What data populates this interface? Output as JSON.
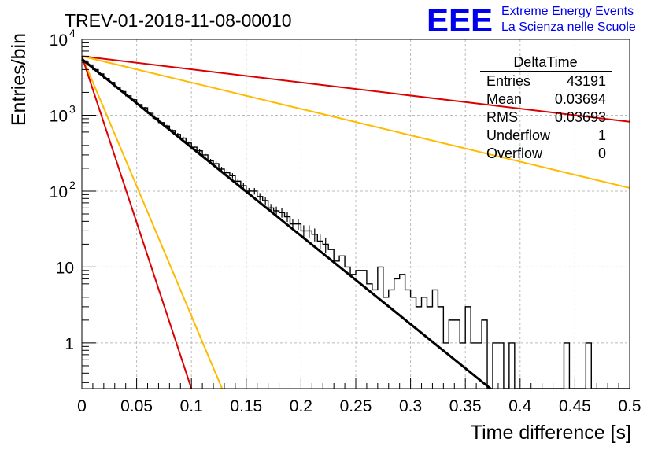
{
  "colors": {
    "hist": "#000000",
    "fit": "#000000",
    "red": "#dd0000",
    "orange": "#ffbb00",
    "logo": "#0000ee",
    "grid": "#bbbbbb"
  },
  "chart_data": {
    "type": "histogram",
    "title": "TREV-01-2018-11-08-00010",
    "xlabel": "Time difference [s]",
    "ylabel": "Entries/bin",
    "xlim": [
      0,
      0.5
    ],
    "ylim": [
      0.25,
      10000
    ],
    "yscale": "log",
    "grid": true,
    "x_ticks": [
      "0",
      "0.05",
      "0.1",
      "0.15",
      "0.2",
      "0.25",
      "0.3",
      "0.35",
      "0.4",
      "0.45",
      "0.5"
    ],
    "y_ticks": [
      {
        "value": 10000,
        "base": "10",
        "exp": "4"
      },
      {
        "value": 1000,
        "base": "10",
        "exp": "3"
      },
      {
        "value": 100,
        "base": "10",
        "exp": "2"
      },
      {
        "value": 10,
        "base": "10",
        "exp": ""
      },
      {
        "value": 1,
        "base": "1",
        "exp": ""
      }
    ],
    "bin_width": 0.005,
    "bin_values": [
      5200,
      4600,
      4000,
      3500,
      3050,
      2700,
      2350,
      2050,
      1800,
      1600,
      1380,
      1250,
      1060,
      910,
      800,
      720,
      630,
      560,
      500,
      430,
      380,
      340,
      300,
      250,
      230,
      195,
      175,
      160,
      135,
      118,
      100,
      100,
      85,
      75,
      60,
      55,
      52,
      46,
      37,
      37,
      30,
      30,
      27,
      22,
      20,
      17,
      12,
      14,
      10,
      8,
      9,
      9,
      6,
      5,
      10,
      4,
      5,
      7,
      8,
      5,
      4,
      3,
      4,
      3,
      5,
      3,
      1,
      2,
      2,
      1,
      3,
      1,
      1,
      2,
      0,
      1,
      1,
      0,
      1,
      0,
      0,
      0,
      0,
      0,
      0,
      0,
      0,
      0,
      1,
      0,
      0,
      0,
      1,
      0,
      0,
      0,
      0,
      0,
      0,
      0
    ],
    "fit_line": {
      "x": [
        0,
        0.373
      ],
      "y": [
        5500,
        0.25
      ]
    },
    "reference_lines": [
      {
        "color": "red",
        "x": [
          0,
          0.5
        ],
        "y": [
          6000,
          820
        ]
      },
      {
        "color": "orange",
        "x": [
          0,
          0.5
        ],
        "y": [
          6000,
          110
        ]
      },
      {
        "color": "orange",
        "x": [
          0,
          0.128
        ],
        "y": [
          6000,
          0.25
        ]
      },
      {
        "color": "red",
        "x": [
          0,
          0.1
        ],
        "y": [
          6000,
          0.25
        ]
      }
    ],
    "stats_box": {
      "title": "DeltaTime",
      "rows": [
        {
          "label": "Entries",
          "value": "43191"
        },
        {
          "label": "Mean",
          "value": "0.03694"
        },
        {
          "label": "RMS",
          "value": "0.03693"
        },
        {
          "label": "Underflow",
          "value": "1"
        },
        {
          "label": "Overflow",
          "value": "0"
        }
      ]
    }
  },
  "logo": {
    "text": "EEE",
    "line1": "Extreme Energy Events",
    "line2": "La Scienza nelle Scuole"
  }
}
